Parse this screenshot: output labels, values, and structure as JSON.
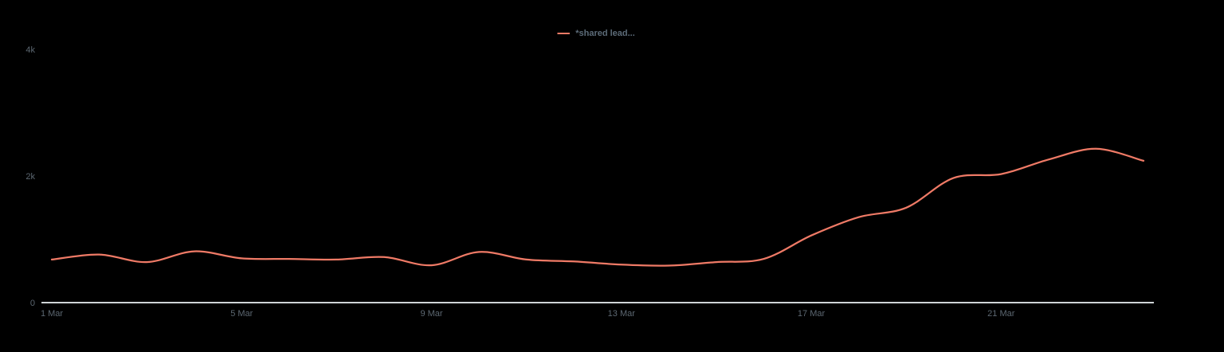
{
  "colors": {
    "background": "#000000",
    "axis_line": "#cfd4d6",
    "tick_label": "#5c6771",
    "legend_label": "#5c6b78",
    "series_line": "#ef7a66"
  },
  "legend": {
    "label": "*shared lead..."
  },
  "chart_data": {
    "type": "line",
    "title": "",
    "xlabel": "",
    "ylabel": "",
    "x": [
      "1 Mar",
      "2 Mar",
      "3 Mar",
      "4 Mar",
      "5 Mar",
      "6 Mar",
      "7 Mar",
      "8 Mar",
      "9 Mar",
      "10 Mar",
      "11 Mar",
      "12 Mar",
      "13 Mar",
      "14 Mar",
      "15 Mar",
      "16 Mar",
      "17 Mar",
      "18 Mar",
      "19 Mar",
      "20 Mar",
      "21 Mar",
      "22 Mar",
      "23 Mar",
      "24 Mar"
    ],
    "series": [
      {
        "name": "*shared lead...",
        "color": "#ef7a66",
        "values": [
          680,
          760,
          640,
          810,
          700,
          690,
          680,
          720,
          590,
          800,
          680,
          650,
          600,
          585,
          640,
          690,
          1060,
          1350,
          1500,
          1970,
          2030,
          2260,
          2430,
          2240
        ]
      }
    ],
    "ylim": [
      0,
      4000
    ],
    "yticks": [
      {
        "value": 0,
        "label": "0"
      },
      {
        "value": 2000,
        "label": "2k"
      },
      {
        "value": 4000,
        "label": "4k"
      }
    ],
    "xtick_labels": [
      "1 Mar",
      "5 Mar",
      "9 Mar",
      "13 Mar",
      "17 Mar",
      "21 Mar"
    ],
    "grid": false,
    "legend_position": "top-center"
  }
}
